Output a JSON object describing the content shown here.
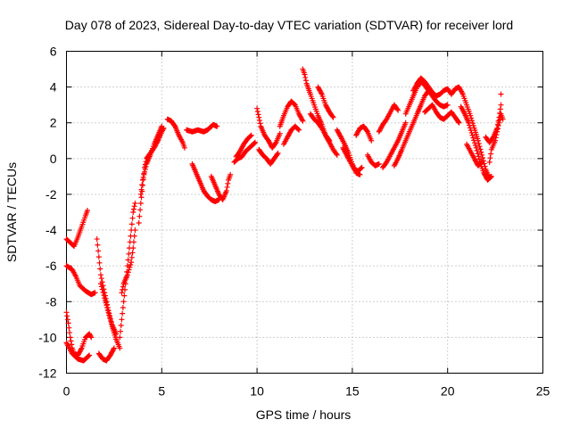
{
  "chart_data": {
    "type": "scatter",
    "title": "Day 078 of 2023, Sidereal Day-to-day VTEC variation (SDTVAR) for receiver lord",
    "xlabel": "GPS time / hours",
    "ylabel": "SDTVAR / TECUs",
    "xlim": [
      0,
      25
    ],
    "ylim": [
      -12,
      6
    ],
    "xticks": [
      "0",
      "5",
      "10",
      "15",
      "20",
      "25"
    ],
    "yticks": [
      "-12",
      "-10",
      "-8",
      "-6",
      "-4",
      "-2",
      "0",
      "2",
      "4",
      "6"
    ],
    "grid": true,
    "marker": "plus",
    "color": "#ff0000",
    "tracks": [
      [
        [
          0.0,
          -4.5
        ],
        [
          0.2,
          -4.7
        ],
        [
          0.4,
          -4.9
        ],
        [
          0.6,
          -4.4
        ],
        [
          0.8,
          -3.8
        ],
        [
          1.0,
          -3.2
        ],
        [
          1.1,
          -2.9
        ]
      ],
      [
        [
          0.0,
          -6.0
        ],
        [
          0.3,
          -6.2
        ],
        [
          0.5,
          -6.6
        ],
        [
          0.7,
          -7.1
        ],
        [
          1.0,
          -7.4
        ],
        [
          1.3,
          -7.6
        ],
        [
          1.5,
          -7.5
        ]
      ],
      [
        [
          0.0,
          -8.6
        ],
        [
          0.1,
          -9.2
        ],
        [
          0.2,
          -10.0
        ],
        [
          0.3,
          -10.6
        ],
        [
          0.4,
          -10.9
        ],
        [
          0.6,
          -11.0
        ],
        [
          0.8,
          -10.6
        ],
        [
          1.0,
          -10.0
        ],
        [
          1.2,
          -9.8
        ],
        [
          1.3,
          -10.0
        ]
      ],
      [
        [
          0.0,
          -10.3
        ],
        [
          0.3,
          -10.9
        ],
        [
          0.6,
          -11.2
        ],
        [
          0.9,
          -11.3
        ],
        [
          1.2,
          -11.0
        ]
      ],
      [
        [
          1.6,
          -4.5
        ],
        [
          1.7,
          -5.5
        ],
        [
          1.8,
          -6.5
        ],
        [
          2.0,
          -7.5
        ],
        [
          2.2,
          -8.5
        ],
        [
          2.4,
          -9.3
        ],
        [
          2.6,
          -9.8
        ]
      ],
      [
        [
          1.8,
          -7.0
        ],
        [
          2.0,
          -7.8
        ],
        [
          2.2,
          -8.6
        ],
        [
          2.4,
          -9.4
        ],
        [
          2.6,
          -10.1
        ],
        [
          2.8,
          -10.6
        ]
      ],
      [
        [
          1.7,
          -10.9
        ],
        [
          1.9,
          -11.2
        ],
        [
          2.1,
          -11.3
        ],
        [
          2.3,
          -11.0
        ],
        [
          2.5,
          -10.6
        ]
      ],
      [
        [
          2.8,
          -10.0
        ],
        [
          2.9,
          -9.0
        ],
        [
          3.0,
          -8.0
        ],
        [
          3.1,
          -7.0
        ],
        [
          3.2,
          -6.0
        ],
        [
          3.3,
          -5.0
        ],
        [
          3.4,
          -4.0
        ],
        [
          3.5,
          -3.0
        ],
        [
          3.6,
          -2.5
        ]
      ],
      [
        [
          2.9,
          -7.5
        ],
        [
          3.0,
          -7.0
        ],
        [
          3.2,
          -6.5
        ],
        [
          3.4,
          -5.8
        ],
        [
          3.5,
          -5.0
        ],
        [
          3.6,
          -4.0
        ]
      ],
      [
        [
          3.8,
          -3.6
        ],
        [
          3.9,
          -2.5
        ],
        [
          4.0,
          -1.5
        ],
        [
          4.1,
          -0.5
        ],
        [
          4.2,
          0.0
        ],
        [
          4.4,
          0.3
        ],
        [
          4.6,
          0.6
        ],
        [
          4.8,
          1.0
        ],
        [
          5.0,
          1.5
        ],
        [
          5.1,
          1.7
        ]
      ],
      [
        [
          3.9,
          -2.0
        ],
        [
          4.0,
          -1.2
        ],
        [
          4.2,
          -0.3
        ],
        [
          4.4,
          0.2
        ],
        [
          4.6,
          0.8
        ],
        [
          4.8,
          1.3
        ],
        [
          5.0,
          1.8
        ]
      ],
      [
        [
          5.3,
          2.2
        ],
        [
          5.5,
          2.1
        ],
        [
          5.7,
          1.8
        ],
        [
          5.9,
          1.3
        ],
        [
          6.1,
          0.9
        ],
        [
          6.2,
          0.6
        ]
      ],
      [
        [
          6.3,
          1.6
        ],
        [
          6.6,
          1.5
        ],
        [
          6.9,
          1.6
        ],
        [
          7.2,
          1.5
        ],
        [
          7.4,
          1.6
        ],
        [
          7.7,
          1.9
        ],
        [
          7.9,
          1.8
        ]
      ],
      [
        [
          6.6,
          -0.3
        ],
        [
          6.8,
          -0.8
        ],
        [
          7.0,
          -1.3
        ],
        [
          7.2,
          -1.8
        ],
        [
          7.4,
          -2.1
        ],
        [
          7.6,
          -2.3
        ],
        [
          7.8,
          -2.4
        ],
        [
          8.0,
          -2.3
        ]
      ],
      [
        [
          7.6,
          -1.0
        ],
        [
          7.8,
          -1.5
        ],
        [
          8.0,
          -2.0
        ],
        [
          8.2,
          -2.3
        ],
        [
          8.4,
          -1.8
        ],
        [
          8.5,
          -1.2
        ],
        [
          8.6,
          -0.9
        ]
      ],
      [
        [
          8.8,
          -0.2
        ],
        [
          9.0,
          0.0
        ],
        [
          9.2,
          0.1
        ],
        [
          9.4,
          0.4
        ],
        [
          9.6,
          0.6
        ],
        [
          9.8,
          0.8
        ],
        [
          9.9,
          0.9
        ]
      ],
      [
        [
          8.9,
          0.1
        ],
        [
          9.1,
          0.4
        ],
        [
          9.3,
          0.8
        ],
        [
          9.5,
          1.1
        ],
        [
          9.7,
          1.3
        ]
      ],
      [
        [
          10.0,
          2.8
        ],
        [
          10.1,
          2.3
        ],
        [
          10.2,
          1.8
        ],
        [
          10.4,
          1.3
        ],
        [
          10.6,
          1.0
        ],
        [
          10.8,
          0.6
        ],
        [
          11.0,
          0.9
        ],
        [
          11.2,
          1.4
        ]
      ],
      [
        [
          10.1,
          0.5
        ],
        [
          10.3,
          0.2
        ],
        [
          10.5,
          0.0
        ],
        [
          10.7,
          -0.3
        ],
        [
          10.9,
          0.0
        ],
        [
          11.1,
          0.3
        ]
      ],
      [
        [
          11.2,
          1.8
        ],
        [
          11.4,
          2.4
        ],
        [
          11.6,
          2.9
        ],
        [
          11.8,
          3.2
        ],
        [
          12.0,
          3.0
        ],
        [
          12.2,
          2.5
        ],
        [
          12.4,
          2.1
        ]
      ],
      [
        [
          11.4,
          0.8
        ],
        [
          11.6,
          1.2
        ],
        [
          11.8,
          1.6
        ],
        [
          12.0,
          1.8
        ],
        [
          12.2,
          1.6
        ]
      ],
      [
        [
          12.4,
          5.0
        ],
        [
          12.5,
          4.7
        ],
        [
          12.6,
          4.2
        ],
        [
          12.8,
          3.6
        ],
        [
          13.0,
          3.0
        ],
        [
          13.2,
          2.4
        ],
        [
          13.4,
          1.9
        ],
        [
          13.6,
          1.3
        ],
        [
          13.8,
          1.0
        ]
      ],
      [
        [
          12.8,
          2.5
        ],
        [
          13.0,
          2.2
        ],
        [
          13.2,
          2.0
        ],
        [
          13.4,
          1.7
        ],
        [
          13.6,
          1.3
        ],
        [
          13.8,
          0.9
        ],
        [
          14.0,
          0.5
        ],
        [
          14.2,
          0.2
        ]
      ],
      [
        [
          13.2,
          4.0
        ],
        [
          13.4,
          3.6
        ],
        [
          13.6,
          3.0
        ],
        [
          13.8,
          2.6
        ],
        [
          14.0,
          2.3
        ]
      ],
      [
        [
          14.2,
          1.6
        ],
        [
          14.4,
          1.2
        ],
        [
          14.6,
          0.8
        ],
        [
          14.8,
          0.3
        ],
        [
          15.0,
          -0.3
        ],
        [
          15.2,
          -0.8
        ],
        [
          15.4,
          -0.9
        ]
      ],
      [
        [
          14.5,
          0.6
        ],
        [
          14.7,
          0.2
        ],
        [
          14.9,
          -0.2
        ],
        [
          15.1,
          -0.6
        ],
        [
          15.3,
          -0.7
        ],
        [
          15.5,
          -0.5
        ]
      ],
      [
        [
          15.2,
          1.3
        ],
        [
          15.4,
          1.7
        ],
        [
          15.6,
          1.8
        ],
        [
          15.8,
          1.5
        ],
        [
          16.0,
          1.0
        ]
      ],
      [
        [
          15.8,
          0.2
        ],
        [
          16.0,
          -0.2
        ],
        [
          16.2,
          -0.4
        ],
        [
          16.4,
          -0.3
        ]
      ],
      [
        [
          16.4,
          1.5
        ],
        [
          16.6,
          1.9
        ],
        [
          16.8,
          2.2
        ],
        [
          17.0,
          2.6
        ],
        [
          17.2,
          3.0
        ],
        [
          17.4,
          2.7
        ]
      ],
      [
        [
          16.6,
          -0.5
        ],
        [
          16.8,
          -0.2
        ],
        [
          17.0,
          0.2
        ],
        [
          17.2,
          0.6
        ],
        [
          17.4,
          1.0
        ],
        [
          17.6,
          1.5
        ],
        [
          17.8,
          2.0
        ]
      ],
      [
        [
          17.2,
          -0.4
        ],
        [
          17.4,
          0.0
        ],
        [
          17.6,
          0.5
        ],
        [
          17.8,
          1.0
        ],
        [
          18.0,
          1.5
        ],
        [
          18.2,
          2.0
        ],
        [
          18.4,
          2.5
        ],
        [
          18.6,
          3.0
        ],
        [
          18.8,
          3.5
        ],
        [
          19.0,
          3.8
        ]
      ],
      [
        [
          17.8,
          2.5
        ],
        [
          18.0,
          3.0
        ],
        [
          18.2,
          3.5
        ],
        [
          18.4,
          4.0
        ],
        [
          18.6,
          4.3
        ],
        [
          18.8,
          4.1
        ],
        [
          19.0,
          3.8
        ],
        [
          19.2,
          3.5
        ],
        [
          19.4,
          3.2
        ],
        [
          19.6,
          3.0
        ],
        [
          19.8,
          2.9
        ],
        [
          20.0,
          3.0
        ]
      ],
      [
        [
          18.2,
          3.8
        ],
        [
          18.4,
          4.2
        ],
        [
          18.6,
          4.5
        ],
        [
          18.8,
          4.3
        ],
        [
          19.0,
          4.0
        ],
        [
          19.2,
          3.7
        ],
        [
          19.4,
          3.5
        ],
        [
          19.6,
          3.6
        ],
        [
          19.8,
          3.8
        ],
        [
          20.0,
          3.9
        ],
        [
          20.2,
          3.6
        ]
      ],
      [
        [
          18.8,
          2.6
        ],
        [
          19.0,
          2.8
        ],
        [
          19.2,
          3.0
        ],
        [
          19.4,
          2.6
        ],
        [
          19.6,
          2.3
        ],
        [
          19.8,
          2.2
        ],
        [
          20.0,
          2.4
        ],
        [
          20.2,
          2.6
        ],
        [
          20.4,
          2.3
        ],
        [
          20.6,
          2.0
        ]
      ],
      [
        [
          20.2,
          3.6
        ],
        [
          20.4,
          3.9
        ],
        [
          20.6,
          4.0
        ],
        [
          20.8,
          3.6
        ],
        [
          21.0,
          3.0
        ],
        [
          21.2,
          2.4
        ],
        [
          21.4,
          1.7
        ],
        [
          21.6,
          1.0
        ],
        [
          21.8,
          0.2
        ],
        [
          22.0,
          -0.6
        ],
        [
          22.2,
          -1.1
        ]
      ],
      [
        [
          20.7,
          2.9
        ],
        [
          20.9,
          2.5
        ],
        [
          21.1,
          2.0
        ],
        [
          21.3,
          1.3
        ],
        [
          21.5,
          0.6
        ],
        [
          21.7,
          -0.2
        ],
        [
          21.9,
          -0.8
        ],
        [
          22.1,
          -1.2
        ],
        [
          22.3,
          -1.0
        ]
      ],
      [
        [
          21.0,
          0.8
        ],
        [
          21.2,
          0.4
        ],
        [
          21.4,
          0.0
        ],
        [
          21.6,
          -0.4
        ],
        [
          21.8,
          -0.2
        ]
      ],
      [
        [
          22.0,
          1.2
        ],
        [
          22.2,
          0.9
        ],
        [
          22.4,
          1.2
        ],
        [
          22.6,
          1.7
        ],
        [
          22.7,
          2.3
        ],
        [
          22.8,
          3.0
        ],
        [
          22.8,
          3.6
        ]
      ],
      [
        [
          22.2,
          -0.2
        ],
        [
          22.3,
          0.5
        ],
        [
          22.5,
          1.0
        ],
        [
          22.6,
          1.5
        ],
        [
          22.7,
          2.0
        ],
        [
          22.8,
          2.5
        ],
        [
          22.9,
          2.2
        ]
      ]
    ]
  }
}
